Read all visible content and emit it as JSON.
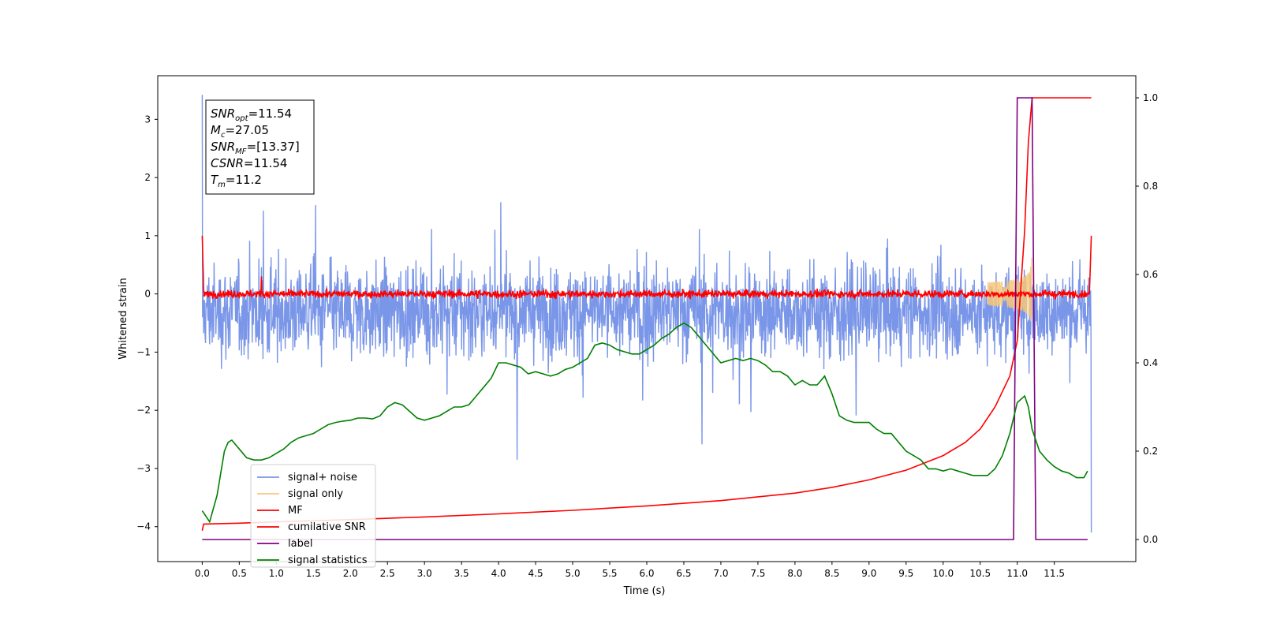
{
  "chart_data": {
    "type": "line",
    "xlabel": "Time (s)",
    "ylabel": "Whitened strain",
    "xlim": [
      -0.6,
      12.6
    ],
    "ylim": [
      -4.6,
      3.75
    ],
    "y2lim": [
      -0.05,
      1.05
    ],
    "xticks": [
      "0.0",
      "0.5",
      "1.0",
      "1.5",
      "2.0",
      "2.5",
      "3.0",
      "3.5",
      "4.0",
      "4.5",
      "5.0",
      "5.5",
      "6.0",
      "6.5",
      "7.0",
      "7.5",
      "8.0",
      "8.5",
      "9.0",
      "9.5",
      "10.0",
      "10.5",
      "11.0",
      "11.5"
    ],
    "yticks": [
      "-4",
      "-3",
      "-2",
      "-1",
      "0",
      "1",
      "2",
      "3"
    ],
    "y2ticks": [
      "0.0",
      "0.2",
      "0.4",
      "0.6",
      "0.8",
      "1.0"
    ],
    "annotation": {
      "lines": [
        {
          "var": "SNR",
          "sub": "opt",
          "value": "=11.54"
        },
        {
          "var": "M",
          "sub": "c",
          "value": "=27.05"
        },
        {
          "var": "SNR",
          "sub": "MF",
          "value": "=[13.37]"
        },
        {
          "var": "CSNR",
          "sub": "",
          "value": "=11.54"
        },
        {
          "var": "T",
          "sub": "m",
          "value": "=11.2"
        }
      ]
    },
    "legend": {
      "placement": "lower-left",
      "entries": [
        {
          "label": "signal+ noise",
          "color": "#7a96e8"
        },
        {
          "label": "signal only",
          "color": "#f6c77a"
        },
        {
          "label": "MF",
          "color": "#ff0000"
        },
        {
          "label": "cumilative SNR",
          "color": "#ff0000"
        },
        {
          "label": "label",
          "color": "#800080"
        },
        {
          "label": "signal statistics",
          "color": "#008000"
        }
      ]
    },
    "series": [
      {
        "key": "noise",
        "axis": "left",
        "color": "#7a96e8",
        "description_values": {
          "t_start": 0.0,
          "t_end": 12.0,
          "mean": -0.3,
          "typical_upper": 1.2,
          "typical_lower": -1.4,
          "max": 3.42,
          "min": -4.1
        }
      },
      {
        "key": "signal_only",
        "axis": "left",
        "color": "#f6c77a",
        "chirp": {
          "t_start": 10.6,
          "t_merge": 11.2,
          "peak_amplitude": 1.0
        }
      },
      {
        "key": "mf",
        "axis": "left",
        "color": "#ff0000",
        "description_values": {
          "start": 1.0,
          "baseline": 0.0,
          "noise_amp": 0.12,
          "end": 1.0
        }
      },
      {
        "key": "cumulative_snr",
        "axis": "right",
        "color": "#ff0000",
        "x": [
          0.0,
          0.02,
          0.5,
          1.0,
          2.0,
          3.0,
          4.0,
          5.0,
          6.0,
          7.0,
          8.0,
          8.5,
          9.0,
          9.5,
          10.0,
          10.3,
          10.5,
          10.7,
          10.9,
          11.0,
          11.1,
          11.15,
          11.2,
          12.0
        ],
        "y": [
          0.02,
          0.035,
          0.037,
          0.04,
          0.045,
          0.051,
          0.058,
          0.066,
          0.076,
          0.088,
          0.105,
          0.118,
          0.135,
          0.157,
          0.19,
          0.22,
          0.25,
          0.3,
          0.37,
          0.45,
          0.7,
          0.9,
          1.0,
          1.0
        ]
      },
      {
        "key": "label",
        "axis": "right",
        "color": "#800080",
        "x": [
          0.0,
          10.95,
          11.0,
          11.2,
          11.25,
          11.95
        ],
        "y": [
          0.0,
          0.0,
          1.0,
          1.0,
          0.0,
          0.0
        ]
      },
      {
        "key": "signal_statistics",
        "axis": "right",
        "color": "#008000",
        "x": [
          0.0,
          0.1,
          0.2,
          0.3,
          0.35,
          0.4,
          0.5,
          0.6,
          0.7,
          0.8,
          0.9,
          1.0,
          1.1,
          1.2,
          1.3,
          1.4,
          1.5,
          1.6,
          1.7,
          1.8,
          1.9,
          2.0,
          2.1,
          2.2,
          2.3,
          2.4,
          2.5,
          2.6,
          2.7,
          2.8,
          2.9,
          3.0,
          3.1,
          3.2,
          3.3,
          3.4,
          3.5,
          3.6,
          3.7,
          3.8,
          3.9,
          4.0,
          4.1,
          4.2,
          4.3,
          4.4,
          4.5,
          4.6,
          4.7,
          4.8,
          4.9,
          5.0,
          5.1,
          5.2,
          5.3,
          5.4,
          5.5,
          5.6,
          5.7,
          5.8,
          5.9,
          6.0,
          6.1,
          6.2,
          6.3,
          6.4,
          6.5,
          6.6,
          6.7,
          6.8,
          6.9,
          7.0,
          7.1,
          7.2,
          7.3,
          7.4,
          7.5,
          7.6,
          7.7,
          7.8,
          7.9,
          8.0,
          8.1,
          8.2,
          8.3,
          8.4,
          8.5,
          8.6,
          8.7,
          8.8,
          8.9,
          9.0,
          9.1,
          9.2,
          9.3,
          9.4,
          9.5,
          9.6,
          9.7,
          9.8,
          9.9,
          10.0,
          10.1,
          10.2,
          10.3,
          10.4,
          10.5,
          10.6,
          10.7,
          10.8,
          10.9,
          11.0,
          11.1,
          11.15,
          11.2,
          11.3,
          11.4,
          11.5,
          11.6,
          11.7,
          11.8,
          11.9,
          11.95
        ],
        "y": [
          0.065,
          0.04,
          0.1,
          0.2,
          0.22,
          0.225,
          0.205,
          0.185,
          0.18,
          0.18,
          0.185,
          0.195,
          0.205,
          0.22,
          0.23,
          0.235,
          0.24,
          0.25,
          0.26,
          0.265,
          0.268,
          0.27,
          0.275,
          0.275,
          0.273,
          0.28,
          0.3,
          0.31,
          0.305,
          0.29,
          0.275,
          0.27,
          0.275,
          0.28,
          0.29,
          0.3,
          0.3,
          0.305,
          0.325,
          0.345,
          0.365,
          0.4,
          0.4,
          0.395,
          0.39,
          0.375,
          0.38,
          0.375,
          0.37,
          0.375,
          0.385,
          0.39,
          0.4,
          0.41,
          0.44,
          0.445,
          0.44,
          0.43,
          0.425,
          0.42,
          0.42,
          0.43,
          0.44,
          0.455,
          0.465,
          0.48,
          0.49,
          0.48,
          0.46,
          0.44,
          0.42,
          0.4,
          0.405,
          0.41,
          0.405,
          0.41,
          0.405,
          0.395,
          0.38,
          0.38,
          0.37,
          0.35,
          0.36,
          0.35,
          0.35,
          0.37,
          0.33,
          0.28,
          0.27,
          0.265,
          0.265,
          0.265,
          0.25,
          0.24,
          0.24,
          0.22,
          0.2,
          0.19,
          0.18,
          0.16,
          0.16,
          0.155,
          0.16,
          0.155,
          0.15,
          0.145,
          0.145,
          0.145,
          0.16,
          0.19,
          0.24,
          0.31,
          0.325,
          0.3,
          0.25,
          0.2,
          0.18,
          0.165,
          0.155,
          0.15,
          0.14,
          0.14,
          0.155
        ]
      }
    ]
  }
}
